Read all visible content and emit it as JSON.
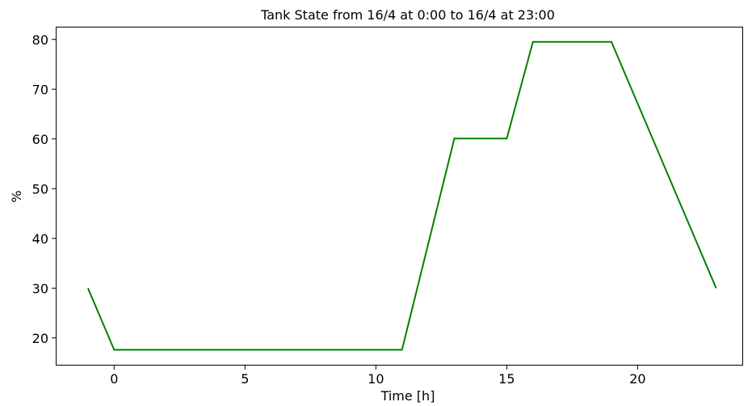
{
  "chart_data": {
    "type": "line",
    "title": "Tank State from 16/4 at 0:00 to 16/4 at 23:00",
    "xlabel": "Time [h]",
    "ylabel": "%",
    "xlim": [
      -2.2,
      24.0
    ],
    "ylim": [
      14.6,
      82.4
    ],
    "x_ticks": [
      0,
      5,
      10,
      15,
      20
    ],
    "y_ticks": [
      20,
      30,
      40,
      50,
      60,
      70,
      80
    ],
    "grid": false,
    "legend": "none",
    "series": [
      {
        "color": "#008000",
        "x": [
          -1,
          0,
          11,
          13,
          15,
          16,
          19,
          23
        ],
        "y": [
          30.0,
          17.6,
          17.6,
          60.1,
          60.1,
          79.5,
          79.5,
          30.0
        ]
      }
    ]
  }
}
